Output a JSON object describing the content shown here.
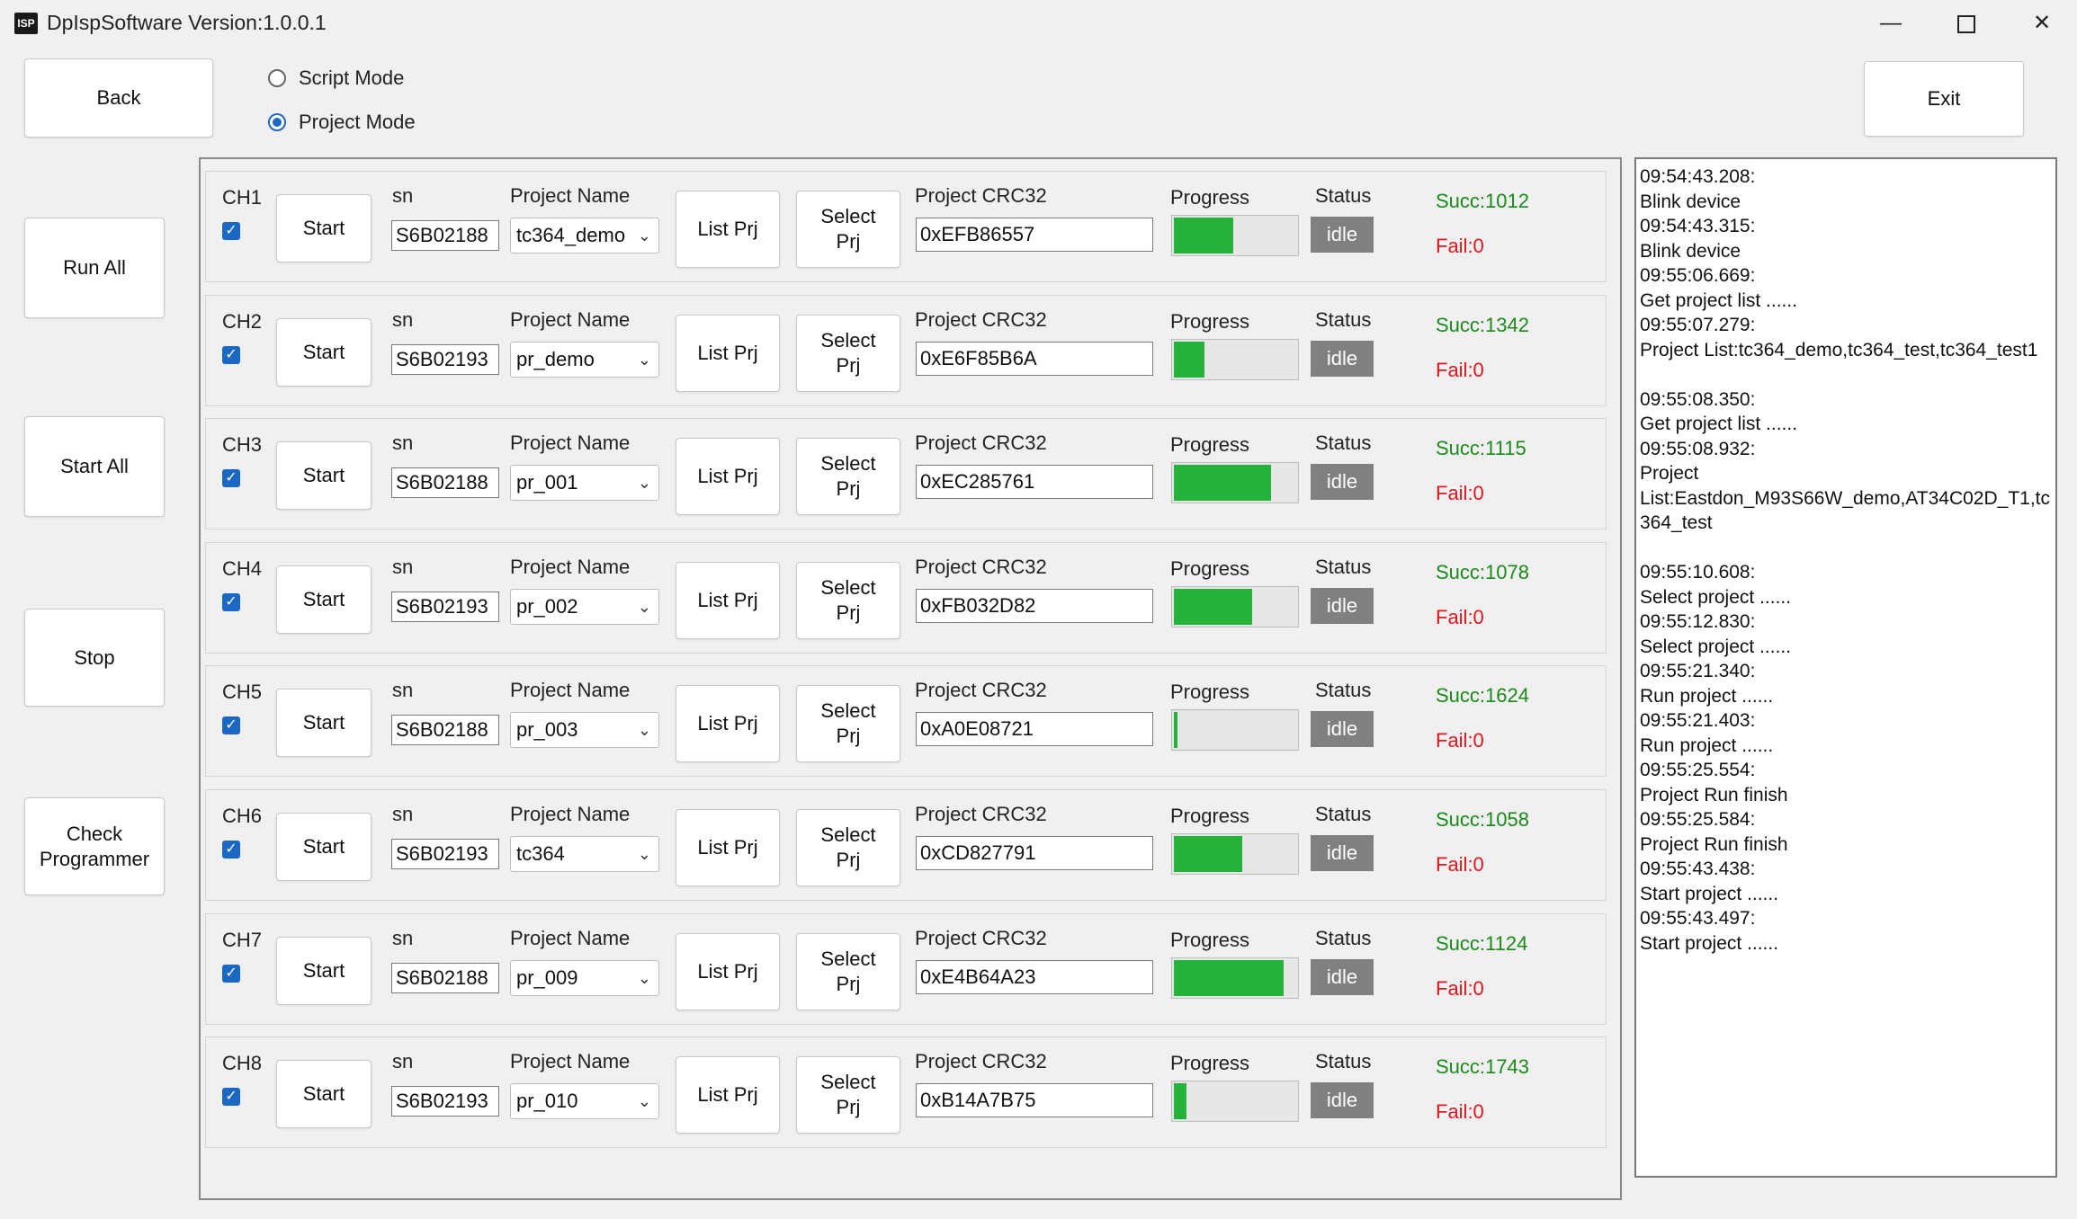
{
  "window": {
    "title": "DpIspSoftware Version:1.0.0.1",
    "icon_text": "ISP",
    "min_glyph": "—",
    "close_glyph": "✕"
  },
  "buttons": {
    "back": "Back",
    "exit": "Exit",
    "run_all": "Run All",
    "start_all": "Start All",
    "stop": "Stop",
    "check_programmer": "Check Programmer"
  },
  "mode": {
    "script_label": "Script Mode",
    "project_label": "Project Mode",
    "selected": "project"
  },
  "labels": {
    "sn": "sn",
    "project_name": "Project Name",
    "project_crc32": "Project CRC32",
    "progress": "Progress",
    "status": "Status",
    "start": "Start",
    "list_prj": "List Prj",
    "select_prj": "Select Prj"
  },
  "colors": {
    "accent": "#1e68c6",
    "progress_fill": "#24b23a",
    "succ": "#1a8a1a",
    "fail": "#e0161e",
    "status_bg": "#808080"
  },
  "channels": [
    {
      "name": "CH1",
      "checked": true,
      "sn": "S6B02188",
      "project": "tc364_demo",
      "crc": "0xEFB86557",
      "progress": 0.5,
      "status": "idle",
      "succ": "Succ:1012",
      "fail": "Fail:0"
    },
    {
      "name": "CH2",
      "checked": true,
      "sn": "S6B02193",
      "project": "pr_demo",
      "crc": "0xE6F85B6A",
      "progress": 0.27,
      "status": "idle",
      "succ": "Succ:1342",
      "fail": "Fail:0"
    },
    {
      "name": "CH3",
      "checked": true,
      "sn": "S6B02188",
      "project": "pr_001",
      "crc": "0xEC285761",
      "progress": 0.8,
      "status": "idle",
      "succ": "Succ:1115",
      "fail": "Fail:0"
    },
    {
      "name": "CH4",
      "checked": true,
      "sn": "S6B02193",
      "project": "pr_002",
      "crc": "0xFB032D82",
      "progress": 0.65,
      "status": "idle",
      "succ": "Succ:1078",
      "fail": "Fail:0"
    },
    {
      "name": "CH5",
      "checked": true,
      "sn": "S6B02188",
      "project": "pr_003",
      "crc": "0xA0E08721",
      "progress": 0.06,
      "status": "idle",
      "succ": "Succ:1624",
      "fail": "Fail:0"
    },
    {
      "name": "CH6",
      "checked": true,
      "sn": "S6B02193",
      "project": "tc364",
      "crc": "0xCD827791",
      "progress": 0.57,
      "status": "idle",
      "succ": "Succ:1058",
      "fail": "Fail:0"
    },
    {
      "name": "CH7",
      "checked": true,
      "sn": "S6B02188",
      "project": "pr_009",
      "crc": "0xE4B64A23",
      "progress": 0.9,
      "status": "idle",
      "succ": "Succ:1124",
      "fail": "Fail:0"
    },
    {
      "name": "CH8",
      "checked": true,
      "sn": "S6B02193",
      "project": "pr_010",
      "crc": "0xB14A7B75",
      "progress": 0.13,
      "status": "idle",
      "succ": "Succ:1743",
      "fail": "Fail:0"
    }
  ],
  "log": [
    "09:54:43.208:",
    "Blink device",
    "09:54:43.315:",
    "Blink device",
    "09:55:06.669:",
    "Get project list ......",
    "09:55:07.279:",
    "Project List:tc364_demo,tc364_test,tc364_test1",
    "",
    "09:55:08.350:",
    "Get project list ......",
    "09:55:08.932:",
    "Project",
    "List:Eastdon_M93S66W_demo,AT34C02D_T1,tc364_test",
    "",
    "09:55:10.608:",
    "Select project ......",
    "09:55:12.830:",
    "Select project ......",
    "09:55:21.340:",
    "Run project ......",
    "09:55:21.403:",
    "Run project ......",
    "09:55:25.554:",
    "Project Run finish",
    "09:55:25.584:",
    "Project Run finish",
    "09:55:43.438:",
    "Start project ......",
    "09:55:43.497:",
    "Start project ......"
  ]
}
